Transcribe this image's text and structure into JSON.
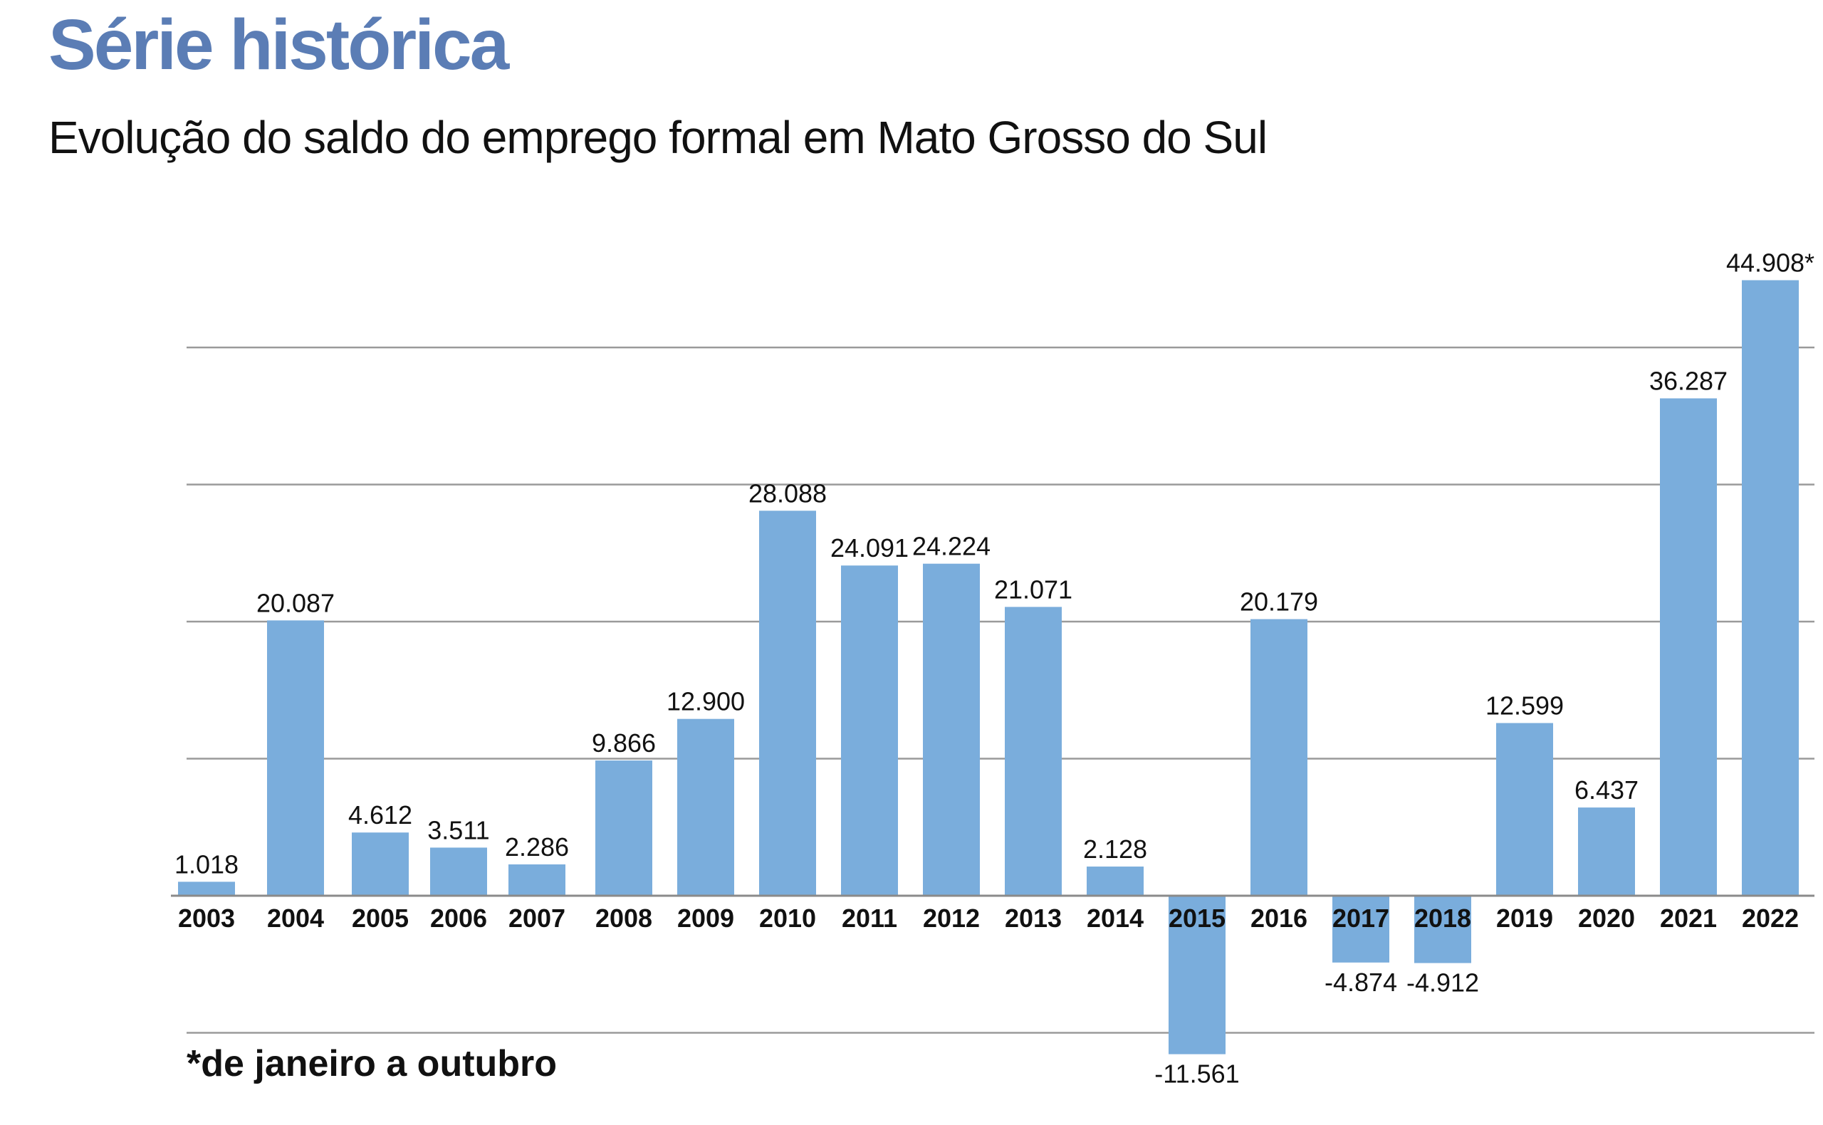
{
  "header": {
    "super_title": "Série histórica",
    "subtitle": "Evolução do saldo do emprego formal em Mato Grosso do Sul"
  },
  "footnote": "*de janeiro a outubro",
  "colors": {
    "bar": "#7aaddc",
    "super_title": "#5b7db5",
    "text": "#111111",
    "gridline": "#9a9a9a"
  },
  "chart_data": {
    "type": "bar",
    "title": "Evolução do saldo do emprego formal em Mato Grosso do Sul",
    "xlabel": "",
    "ylabel": "",
    "ylim": [
      -13000,
      47000
    ],
    "grid": true,
    "legend": "none",
    "categories": [
      "2003",
      "2004",
      "2005",
      "2006",
      "2007",
      "2008",
      "2009",
      "2010",
      "2011",
      "2012",
      "2013",
      "2014",
      "2015",
      "2016",
      "2017",
      "2018",
      "2019",
      "2020",
      "2021",
      "2022"
    ],
    "values": [
      1018,
      20087,
      4612,
      3511,
      2286,
      9866,
      12900,
      28088,
      24091,
      24224,
      21071,
      2128,
      -11561,
      20179,
      -4874,
      -4912,
      12599,
      6437,
      36287,
      44908
    ],
    "value_labels": [
      "1.018",
      "20.087",
      "4.612",
      "3.511",
      "2.286",
      "9.866",
      "12.900",
      "28.088",
      "24.091",
      "24.224",
      "21.071",
      "2.128",
      "-11.561",
      "20.179",
      "-4.874",
      "-4.912",
      "12.599",
      "6.437",
      "36.287",
      "44.908*"
    ],
    "gridlines": [
      40000,
      30000,
      20000,
      10000,
      -10000
    ]
  }
}
